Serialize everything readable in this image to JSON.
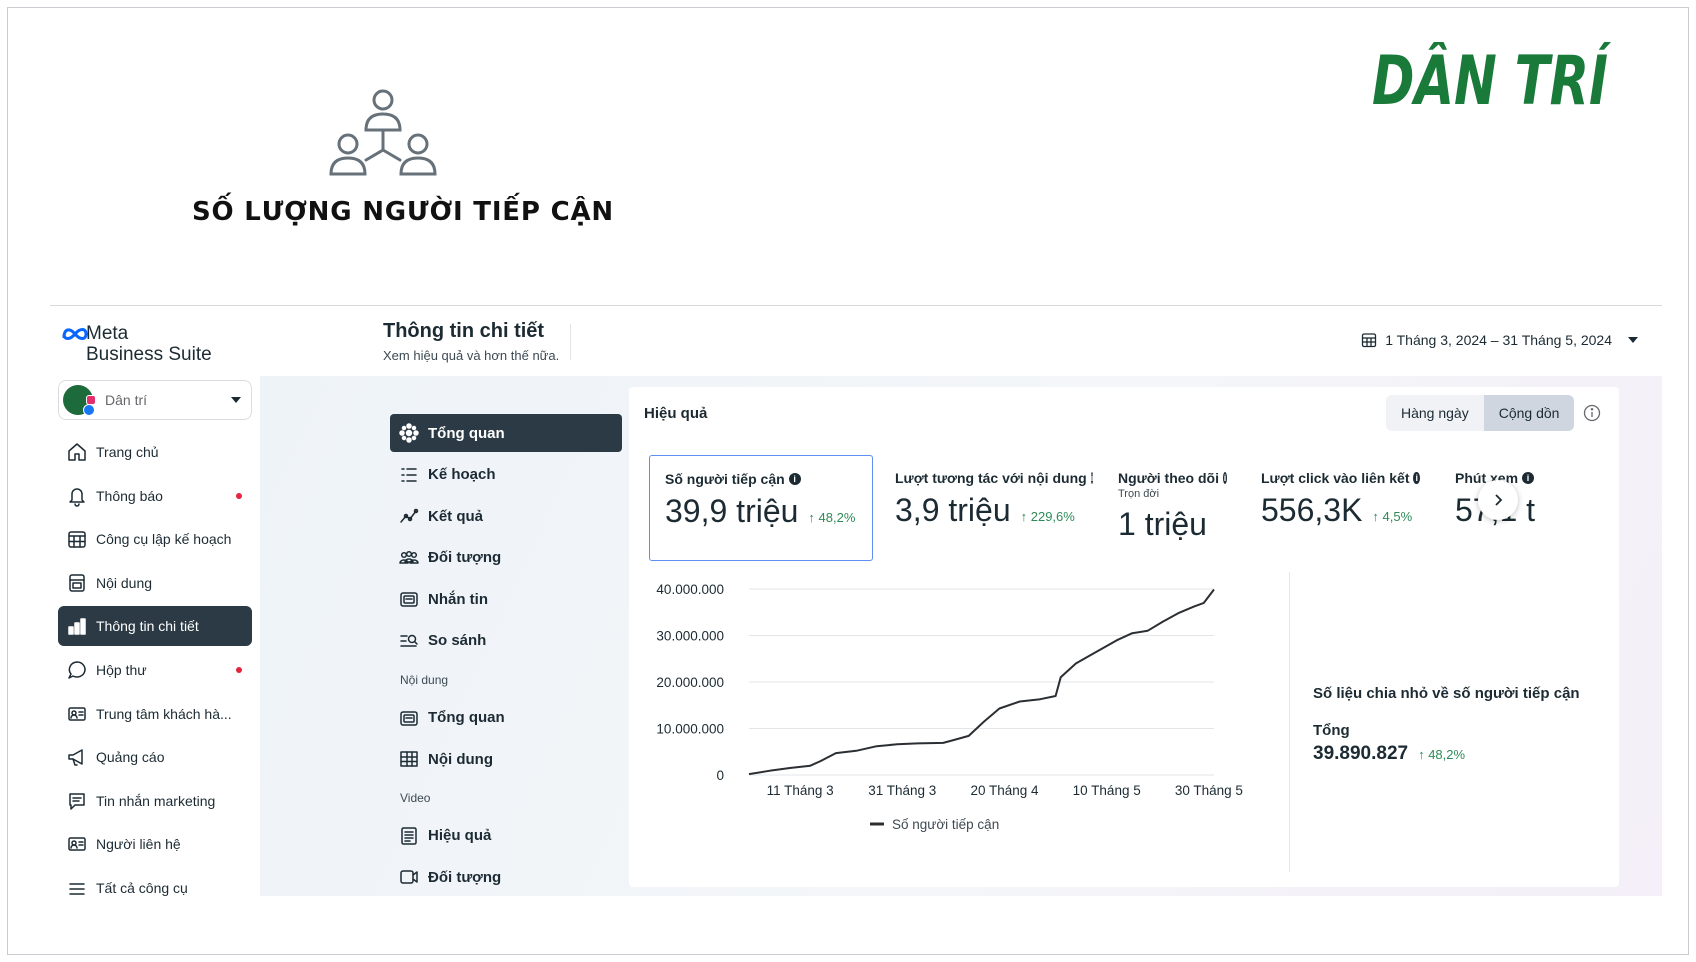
{
  "banner": {
    "headline": "SỐ LƯỢNG NGƯỜI TIẾP CẬN",
    "icon": "people-network-icon",
    "brand": "DÂN TRÍ",
    "brand_color": "#1a7a3a"
  },
  "app": {
    "logo_line1": "Meta",
    "logo_line2": "Business Suite",
    "account_name": "Dân trí",
    "nav": [
      {
        "label": "Trang chủ",
        "icon": "home-icon",
        "dot": false,
        "active": false
      },
      {
        "label": "Thông báo",
        "icon": "bell-icon",
        "dot": true,
        "active": false
      },
      {
        "label": "Công cụ lập kế hoạch",
        "icon": "calendar-grid-icon",
        "dot": false,
        "active": false
      },
      {
        "label": "Nội dung",
        "icon": "content-icon",
        "dot": false,
        "active": false
      },
      {
        "label": "Thông tin chi tiết",
        "icon": "bar-chart-icon",
        "dot": false,
        "active": true
      },
      {
        "label": "Hộp thư",
        "icon": "chat-bubble-icon",
        "dot": true,
        "active": false
      },
      {
        "label": "Trung tâm khách hà...",
        "icon": "contact-card-icon",
        "dot": false,
        "active": false
      },
      {
        "label": "Quảng cáo",
        "icon": "megaphone-icon",
        "dot": false,
        "active": false
      },
      {
        "label": "Tin nhắn marketing",
        "icon": "message-icon",
        "dot": false,
        "active": false
      },
      {
        "label": "Người liên hệ",
        "icon": "contact-card-icon",
        "dot": false,
        "active": false
      },
      {
        "label": "Tất cả công cụ",
        "icon": "menu-icon",
        "dot": false,
        "active": false
      }
    ],
    "colors": {
      "active_bg": "#2b3a44",
      "positive": "#2e8b57",
      "alert_dot": "#e4253c",
      "selected_border": "#5f8ff0"
    }
  },
  "header": {
    "title": "Thông tin chi tiết",
    "subtitle": "Xem hiệu quả và hơn thế nữa.",
    "date_range": "1 Tháng 3, 2024 – 31 Tháng 5, 2024"
  },
  "subnav": {
    "items_top": [
      {
        "label": "Tổng quan",
        "icon": "sparkle-icon",
        "active": true
      },
      {
        "label": "Kế hoạch",
        "icon": "list-icon",
        "active": false
      },
      {
        "label": "Kết quả",
        "icon": "trend-icon",
        "active": false
      },
      {
        "label": "Đối tượng",
        "icon": "group-icon",
        "active": false
      },
      {
        "label": "Nhắn tin",
        "icon": "chat-card-icon",
        "active": false
      },
      {
        "label": "So sánh",
        "icon": "compare-icon",
        "active": false
      }
    ],
    "section_content": "Nội dung",
    "items_content": [
      {
        "label": "Tổng quan",
        "icon": "chat-card-icon"
      },
      {
        "label": "Nội dung",
        "icon": "table-icon"
      }
    ],
    "section_video": "Video",
    "items_video": [
      {
        "label": "Hiệu quả",
        "icon": "document-icon"
      },
      {
        "label": "Đối tượng",
        "icon": "video-icon"
      }
    ]
  },
  "panel": {
    "title": "Hiệu quả",
    "toggle": [
      "Hàng ngày",
      "Cộng dồn"
    ],
    "toggle_selected": 1,
    "metrics": [
      {
        "name": "Số người tiếp cận",
        "value": "39,9 triệu",
        "change": "↑ 48,2%",
        "sub": ""
      },
      {
        "name": "Lượt tương tác với nội dung",
        "value": "3,9 triệu",
        "change": "↑ 229,6%",
        "sub": ""
      },
      {
        "name": "Người theo dõi",
        "value": "1 triệu",
        "change": "",
        "sub": "Trọn đời"
      },
      {
        "name": "Lượt click vào liên kết",
        "value": "556,3K",
        "change": "↑ 4,5%",
        "sub": ""
      },
      {
        "name": "Phút xem",
        "value": "57,1 t",
        "change": "",
        "sub": ""
      }
    ],
    "breakdown_title": "Số liệu chia nhỏ về số người tiếp cận",
    "breakdown_total_label": "Tổng",
    "breakdown_total_value": "39.890.827",
    "breakdown_total_change": "↑ 48,2%"
  },
  "chart_data": {
    "type": "line",
    "title": "",
    "xlabel": "",
    "ylabel": "",
    "x_ticks": [
      "11 Tháng 3",
      "31 Tháng 3",
      "20 Tháng 4",
      "10 Tháng 5",
      "30 Tháng 5"
    ],
    "y_ticks": [
      "0",
      "10.000.000",
      "20.000.000",
      "30.000.000",
      "40.000.000"
    ],
    "ylim": [
      0,
      40000000
    ],
    "xlim": [
      "2024-03-01",
      "2024-05-31"
    ],
    "legend": "bottom",
    "grid": true,
    "series": [
      {
        "name": "Số người tiếp cận",
        "color": "#2b2f33",
        "points": [
          [
            "2024-03-01",
            200000
          ],
          [
            "2024-03-05",
            900000
          ],
          [
            "2024-03-09",
            1500000
          ],
          [
            "2024-03-13",
            2000000
          ],
          [
            "2024-03-15",
            3000000
          ],
          [
            "2024-03-18",
            4700000
          ],
          [
            "2024-03-22",
            5200000
          ],
          [
            "2024-03-26",
            6200000
          ],
          [
            "2024-03-30",
            6600000
          ],
          [
            "2024-04-03",
            6800000
          ],
          [
            "2024-04-08",
            6900000
          ],
          [
            "2024-04-10",
            7500000
          ],
          [
            "2024-04-13",
            8400000
          ],
          [
            "2024-04-16",
            11500000
          ],
          [
            "2024-04-19",
            14300000
          ],
          [
            "2024-04-23",
            15800000
          ],
          [
            "2024-04-27",
            16300000
          ],
          [
            "2024-04-30",
            17000000
          ],
          [
            "2024-05-01",
            21000000
          ],
          [
            "2024-05-04",
            24000000
          ],
          [
            "2024-05-08",
            26500000
          ],
          [
            "2024-05-12",
            29000000
          ],
          [
            "2024-05-15",
            30500000
          ],
          [
            "2024-05-18",
            31000000
          ],
          [
            "2024-05-21",
            33000000
          ],
          [
            "2024-05-24",
            34800000
          ],
          [
            "2024-05-27",
            36200000
          ],
          [
            "2024-05-29",
            37000000
          ],
          [
            "2024-05-31",
            39890827
          ]
        ]
      }
    ]
  }
}
